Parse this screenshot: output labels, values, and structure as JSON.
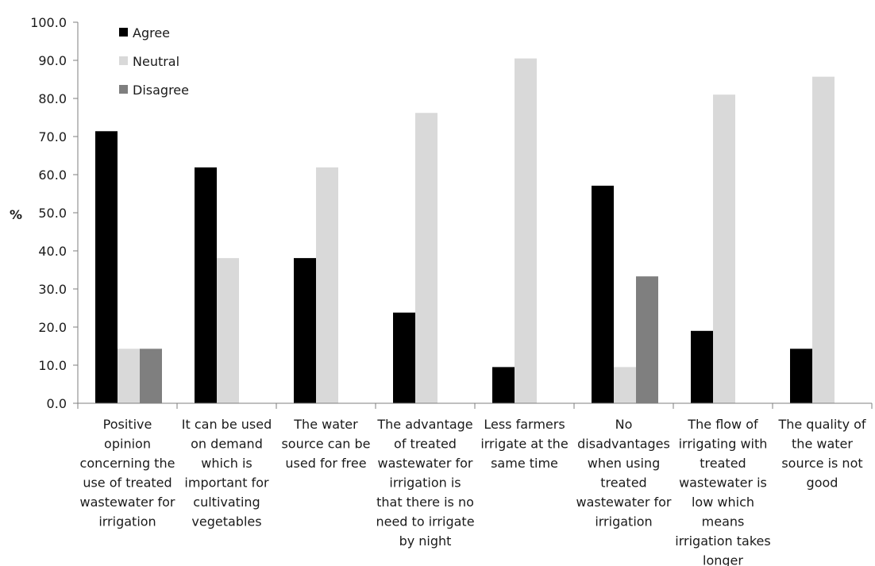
{
  "chart_data": {
    "type": "bar",
    "title": "",
    "xlabel": "",
    "ylabel": "%",
    "ylim": [
      0,
      100
    ],
    "yticks": [
      "0.0",
      "10.0",
      "20.0",
      "30.0",
      "40.0",
      "50.0",
      "60.0",
      "70.0",
      "80.0",
      "90.0",
      "100.0"
    ],
    "grid": false,
    "legend_position": "top-left",
    "categories": [
      [
        "Positive",
        "opinion",
        "concerning the",
        "use of treated",
        "wastewater for",
        "irrigation"
      ],
      [
        "It can be used",
        "on demand",
        "which is",
        "important for",
        "cultivating",
        "vegetables"
      ],
      [
        "The water",
        "source can be",
        "used for free"
      ],
      [
        "The advantage",
        "of treated",
        "wastewater for",
        "irrigation is",
        "that there is no",
        "need to irrigate",
        "by night"
      ],
      [
        "Less farmers",
        "irrigate at the",
        "same time"
      ],
      [
        "No",
        "disadvantages",
        "when using",
        "treated",
        "wastewater for",
        "irrigation"
      ],
      [
        "The flow of",
        "irrigating with",
        "treated",
        "wastewater is",
        "low which",
        "means",
        "irrigation takes",
        "longer"
      ],
      [
        "The quality of",
        "the water",
        "source is not",
        "good"
      ]
    ],
    "series": [
      {
        "name": "Agree",
        "color": "#000000",
        "values": [
          71.4,
          61.9,
          38.1,
          23.8,
          9.5,
          57.1,
          19.0,
          14.3
        ]
      },
      {
        "name": "Neutral",
        "color": "#d9d9d9",
        "values": [
          14.3,
          38.1,
          61.9,
          76.2,
          90.5,
          9.5,
          81.0,
          85.7
        ]
      },
      {
        "name": "Disagree",
        "color": "#7f7f7f",
        "values": [
          14.3,
          0,
          0,
          0,
          0,
          33.3,
          0,
          0
        ]
      }
    ]
  }
}
